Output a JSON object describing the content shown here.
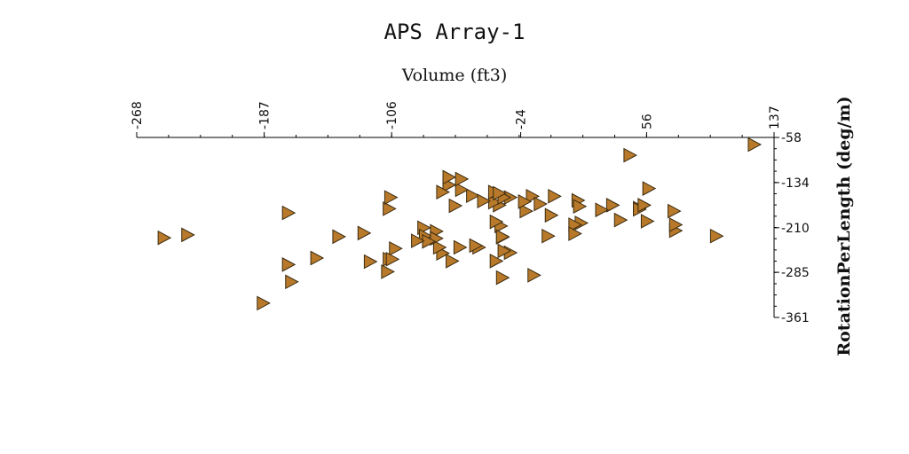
{
  "chart_data": {
    "type": "scatter",
    "title": "APS Array-1",
    "xlabel": "Volume (ft3)",
    "ylabel": "RotationPerLength (deg/m)",
    "xlim": [
      -268,
      137
    ],
    "ylim": [
      -361,
      -58
    ],
    "x_ticks": [
      -268,
      -187,
      -106,
      -24,
      56,
      137
    ],
    "y_ticks": [
      -58,
      -134,
      -210,
      -285,
      -361
    ],
    "x_tick_labels": [
      "-268",
      "-187",
      "-106",
      "-24",
      "56",
      "137"
    ],
    "y_tick_labels": [
      "-58",
      "-134",
      "-210",
      "-285",
      "-361"
    ],
    "grid": false,
    "legend": "none",
    "marker": "triangle-right",
    "marker_color": "#b87a2a",
    "marker_edge_color": "#3a2a10",
    "series": [
      {
        "x": [
          124,
          45,
          57,
          -17,
          -3,
          12,
          34,
          51,
          51,
          54,
          73,
          100,
          56,
          39,
          14,
          13,
          27,
          -5,
          10,
          10,
          -7,
          -31,
          -35,
          -37,
          -40,
          -38,
          -41,
          -55,
          -62,
          -70,
          -62,
          -70,
          -74,
          -86,
          -66,
          -78,
          -63,
          -51,
          -36,
          -53,
          -74,
          -76,
          -85,
          -78,
          -83,
          -90,
          -104,
          -108,
          -106,
          -120,
          -109,
          -154,
          -170,
          -251,
          -236,
          -172,
          -124,
          -140,
          -108,
          -107,
          -172,
          -188,
          -31,
          -35,
          -41,
          -38,
          -48,
          -12,
          -21,
          -22,
          -36,
          -68,
          -36,
          -16,
          -40,
          74,
          74
        ],
        "y": [
          -70,
          -88,
          -144,
          -157,
          -157,
          -164,
          -172,
          -177,
          -179,
          -172,
          -182,
          -224,
          -199,
          -197,
          -202,
          -174,
          -180,
          -189,
          -205,
          -220,
          -224,
          -252,
          -249,
          -207,
          -200,
          -172,
          -167,
          -156,
          -146,
          -138,
          -128,
          -125,
          -150,
          -210,
          -173,
          -216,
          -243,
          -243,
          -226,
          -240,
          -253,
          -243,
          -224,
          -228,
          -233,
          -232,
          -245,
          -263,
          -263,
          -267,
          -284,
          -261,
          -301,
          -227,
          -222,
          -185,
          -219,
          -225,
          -178,
          -159,
          -272,
          -337,
          -159,
          -159,
          -150,
          -152,
          -165,
          -170,
          -182,
          -166,
          -225,
          -266,
          -294,
          -290,
          -266,
          -215,
          -205
        ]
      }
    ]
  }
}
